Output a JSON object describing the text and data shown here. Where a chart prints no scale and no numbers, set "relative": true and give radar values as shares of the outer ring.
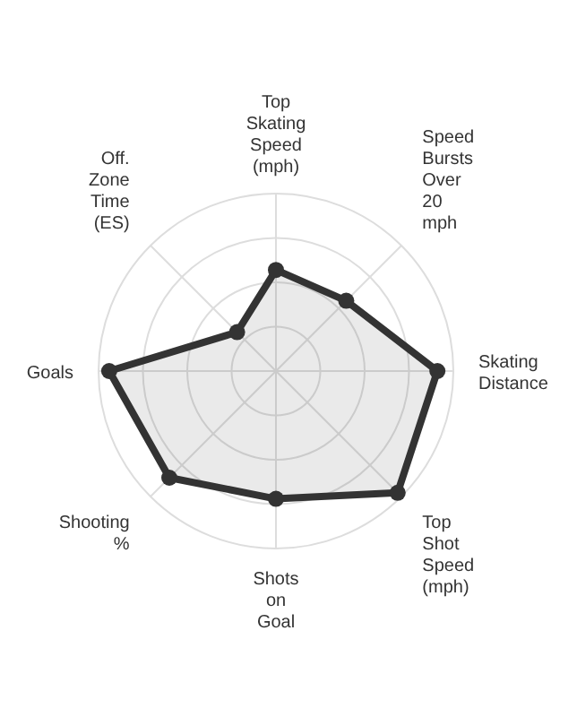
{
  "chart_data": {
    "type": "radar",
    "relative": true,
    "categories": [
      "Top Skating Speed (mph)",
      "Speed Bursts Over 20 mph",
      "Skating Distance",
      "Top Shot Speed (mph)",
      "Shots on Goal",
      "Shooting %",
      "Goals",
      "Off. Zone Time (ES)"
    ],
    "series": [
      {
        "color": "#333333",
        "values": [
          0.57,
          0.56,
          0.91,
          0.97,
          0.72,
          0.85,
          0.94,
          0.31
        ]
      }
    ],
    "grid": true,
    "marker": "circle",
    "legend": false
  }
}
